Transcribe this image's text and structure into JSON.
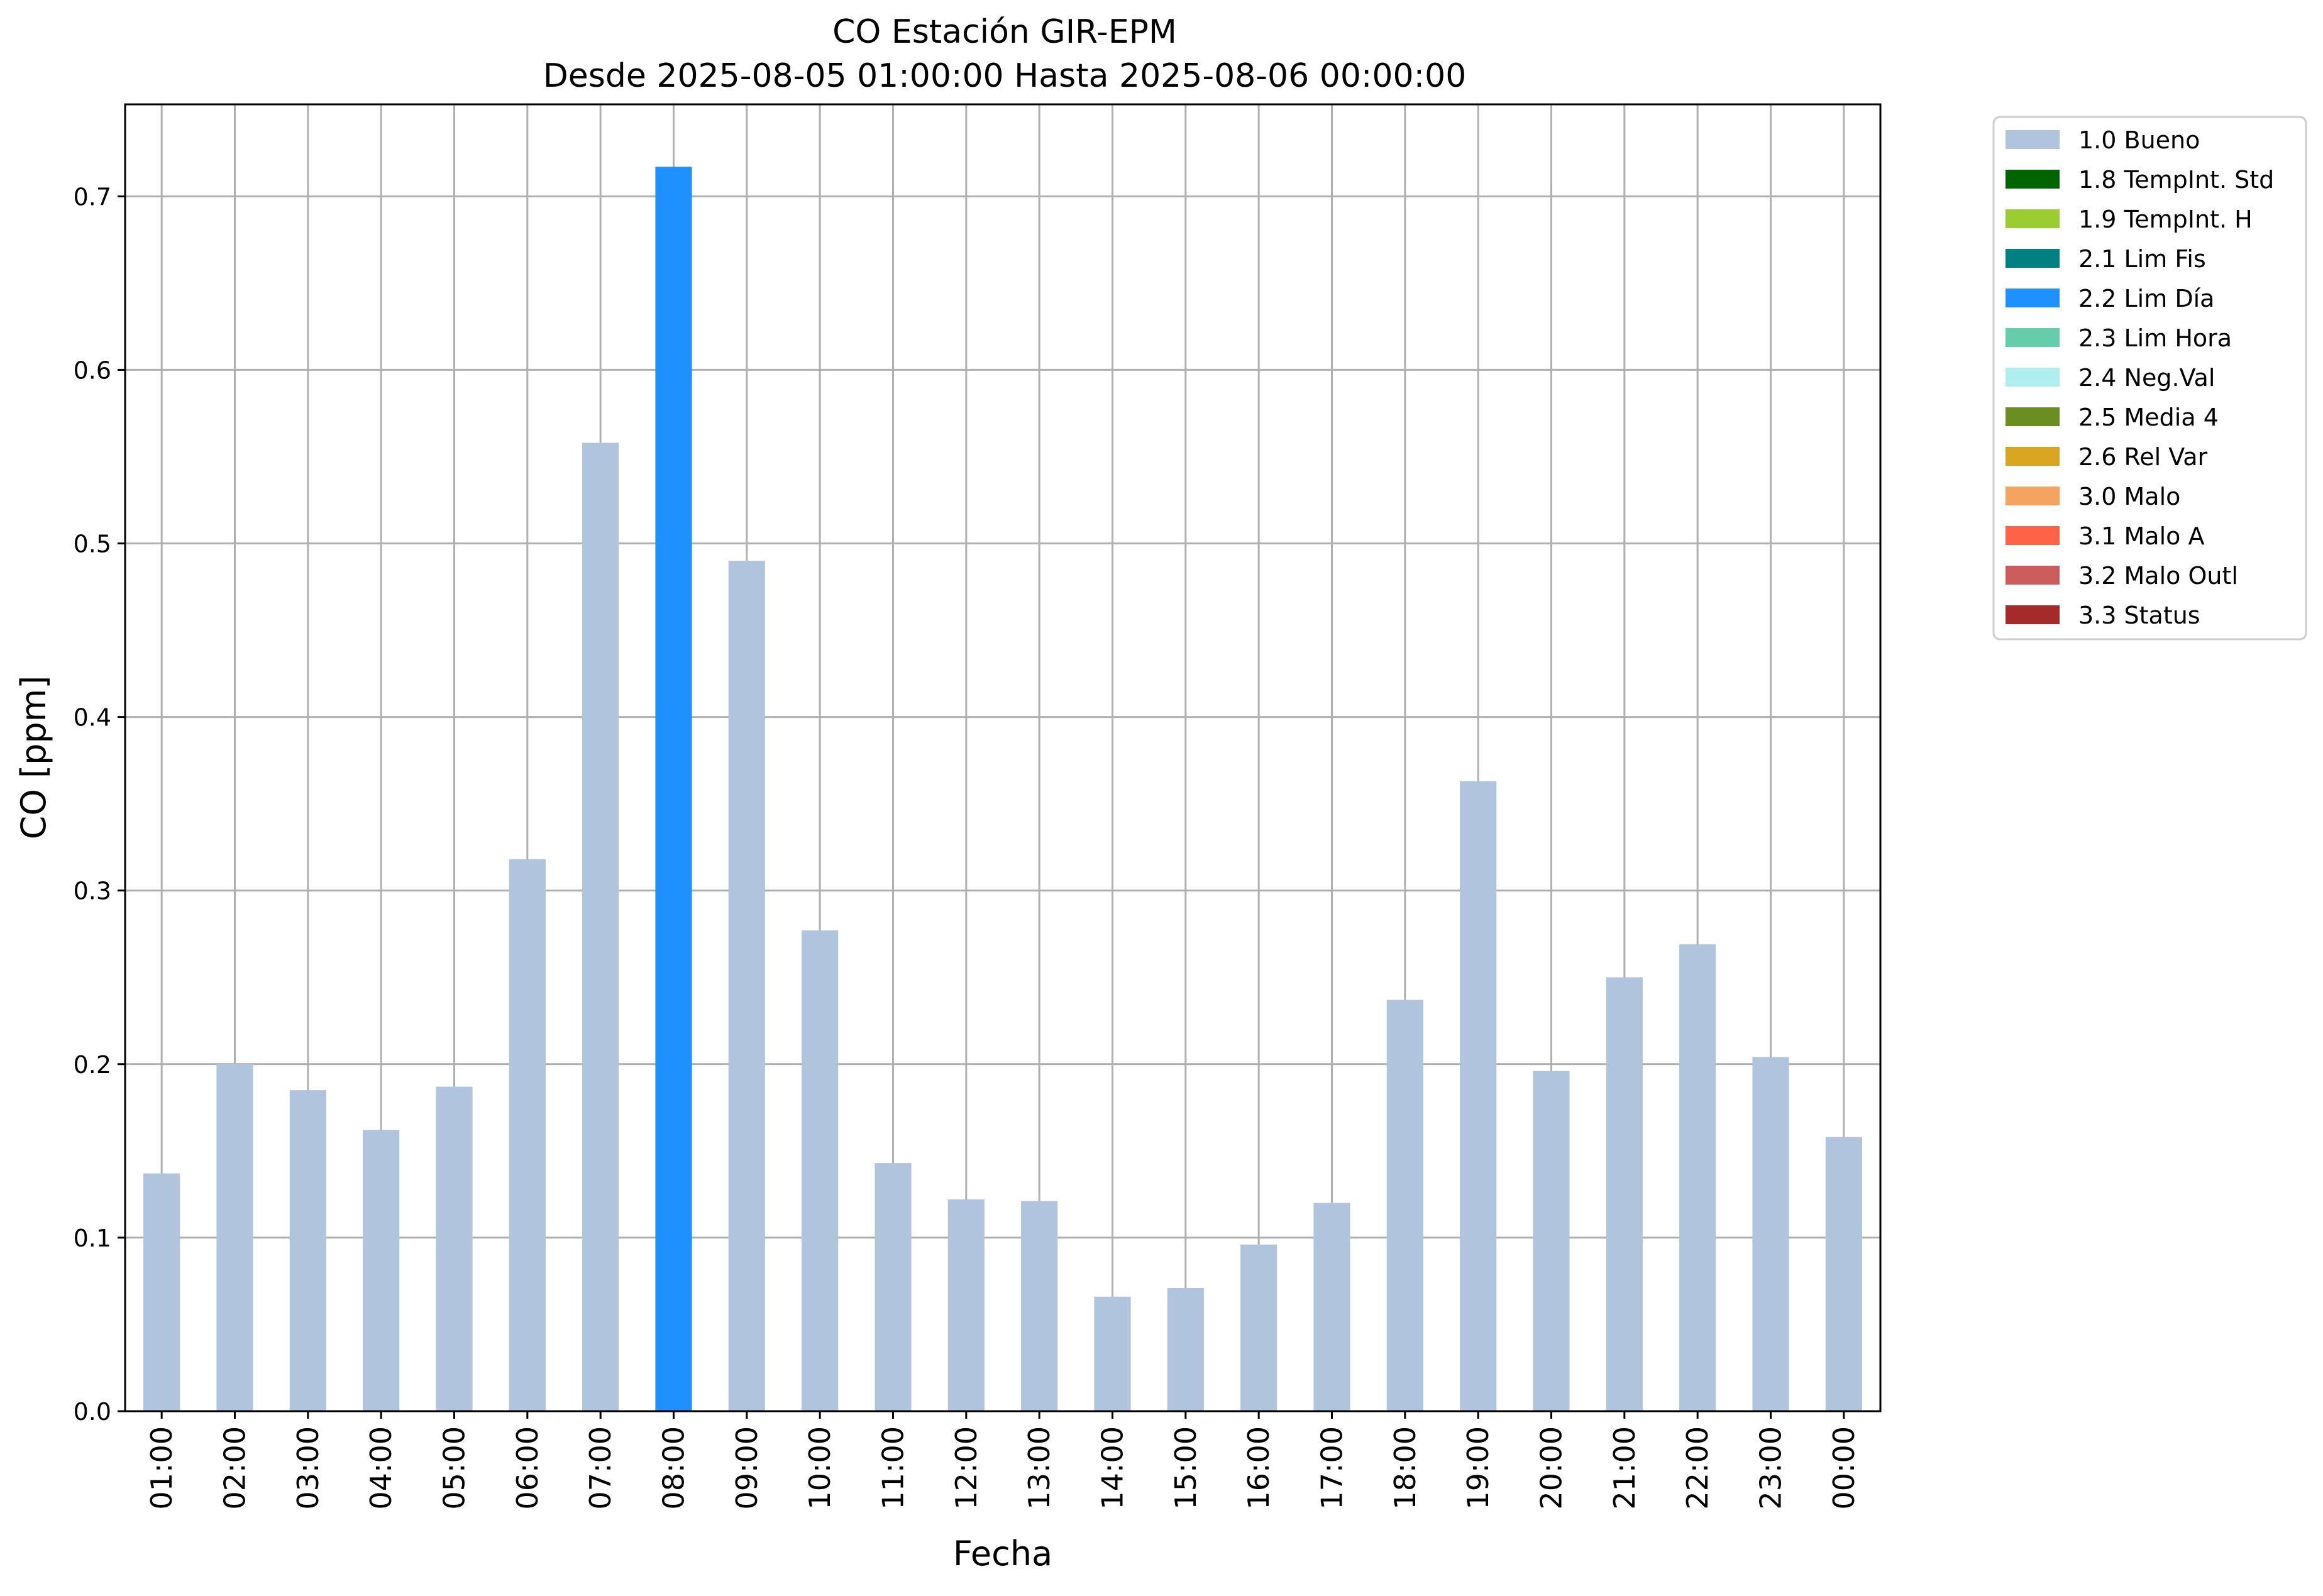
{
  "chart_data": {
    "type": "bar",
    "title": "CO Estación GIR-EPM",
    "subtitle": "Desde 2025-08-05 01:00:00 Hasta 2025-08-06 00:00:00",
    "xlabel": "Fecha",
    "ylabel": "CO [ppm]",
    "ylim": [
      0,
      0.753
    ],
    "yticks": [
      "0.0",
      "0.1",
      "0.2",
      "0.3",
      "0.4",
      "0.5",
      "0.6",
      "0.7"
    ],
    "grid": true,
    "legend_position": "outside-right-top",
    "categories": [
      "01:00",
      "02:00",
      "03:00",
      "04:00",
      "05:00",
      "06:00",
      "07:00",
      "08:00",
      "09:00",
      "10:00",
      "11:00",
      "12:00",
      "13:00",
      "14:00",
      "15:00",
      "16:00",
      "17:00",
      "18:00",
      "19:00",
      "20:00",
      "21:00",
      "22:00",
      "23:00",
      "00:00"
    ],
    "values": [
      0.137,
      0.2,
      0.185,
      0.162,
      0.187,
      0.318,
      0.558,
      0.717,
      0.49,
      0.277,
      0.143,
      0.122,
      0.121,
      0.066,
      0.071,
      0.096,
      0.12,
      0.237,
      0.363,
      0.196,
      0.25,
      0.269,
      0.204,
      0.158
    ],
    "flags": [
      "1.0 Bueno",
      "1.0 Bueno",
      "1.0 Bueno",
      "1.0 Bueno",
      "1.0 Bueno",
      "1.0 Bueno",
      "1.0 Bueno",
      "2.2 Lim Día",
      "1.0 Bueno",
      "1.0 Bueno",
      "1.0 Bueno",
      "1.0 Bueno",
      "1.0 Bueno",
      "1.0 Bueno",
      "1.0 Bueno",
      "1.0 Bueno",
      "1.0 Bueno",
      "1.0 Bueno",
      "1.0 Bueno",
      "1.0 Bueno",
      "1.0 Bueno",
      "1.0 Bueno",
      "1.0 Bueno",
      "1.0 Bueno"
    ],
    "legend": [
      {
        "label": "1.0 Bueno",
        "color": "#b0c4de"
      },
      {
        "label": "1.8 TempInt. Std",
        "color": "#006400"
      },
      {
        "label": "1.9 TempInt. H",
        "color": "#9acd32"
      },
      {
        "label": "2.1 Lim Fis",
        "color": "#008080"
      },
      {
        "label": "2.2 Lim Día",
        "color": "#1e90ff"
      },
      {
        "label": "2.3 Lim Hora",
        "color": "#66cdaa"
      },
      {
        "label": "2.4 Neg.Val",
        "color": "#afeeee"
      },
      {
        "label": "2.5 Media 4",
        "color": "#6b8e23"
      },
      {
        "label": "2.6 Rel Var",
        "color": "#daa520"
      },
      {
        "label": "3.0 Malo",
        "color": "#f4a460"
      },
      {
        "label": "3.1 Malo A",
        "color": "#ff6347"
      },
      {
        "label": "3.2 Malo Outl",
        "color": "#cd5c5c"
      },
      {
        "label": "3.3 Status",
        "color": "#a52a2a"
      }
    ]
  }
}
